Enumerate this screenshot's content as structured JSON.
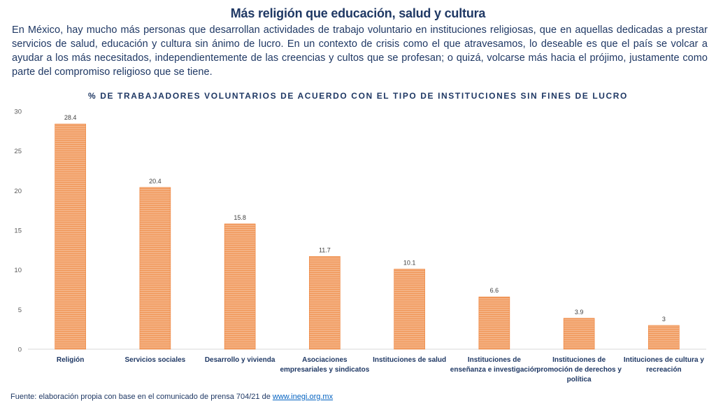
{
  "page": {
    "title": "Más religión que educación, salud y cultura",
    "intro": "En México, hay mucho más personas que desarrollan actividades de trabajo voluntario en instituciones religiosas, que en aquellas dedicadas a prestar servicios de salud, educación y cultura sin ánimo de lucro. En un contexto de crisis como el que atravesamos, lo deseable es que el país se volcar a ayudar a los más necesitados, independientemente de las creencias y cultos que se profesan; o quizá, volcarse más hacia el prójimo, justamente como parte del compromiso religioso que se tiene.",
    "source_prefix": "Fuente: elaboración propia con base en el comunicado de prensa 704/21 de ",
    "source_link": "www.inegi.org.mx"
  },
  "colors": {
    "bar": "#f4b183",
    "bar_stripe": "#ed7d31",
    "axis": "#d9d9d9",
    "text": "#1f3864",
    "tick": "#595959"
  },
  "chart_data": {
    "type": "bar",
    "title": "% DE TRABAJADORES VOLUNTARIOS DE ACUERDO CON EL TIPO DE INSTITUCIONES SIN FINES DE LUCRO",
    "categories": [
      "Religión",
      "Servicios sociales",
      "Desarrollo y vivienda",
      "Asociaciones empresariales y sindicatos",
      "Instituciones de salud",
      "Instituciones de enseñanza e investigación",
      "Instituciones de promoción de derechos y política",
      "Intituciones de cultura y recreación"
    ],
    "values": [
      28.4,
      20.4,
      15.8,
      11.7,
      10.1,
      6.6,
      3.9,
      3
    ],
    "value_labels": [
      "28.4",
      "20.4",
      "15.8",
      "11.7",
      "10.1",
      "6.6",
      "3.9",
      "3"
    ],
    "yticks": [
      0,
      5,
      10,
      15,
      20,
      25,
      30
    ],
    "ylim": [
      0,
      30
    ],
    "xlabel": "",
    "ylabel": "",
    "grid": false,
    "legend": "none"
  }
}
